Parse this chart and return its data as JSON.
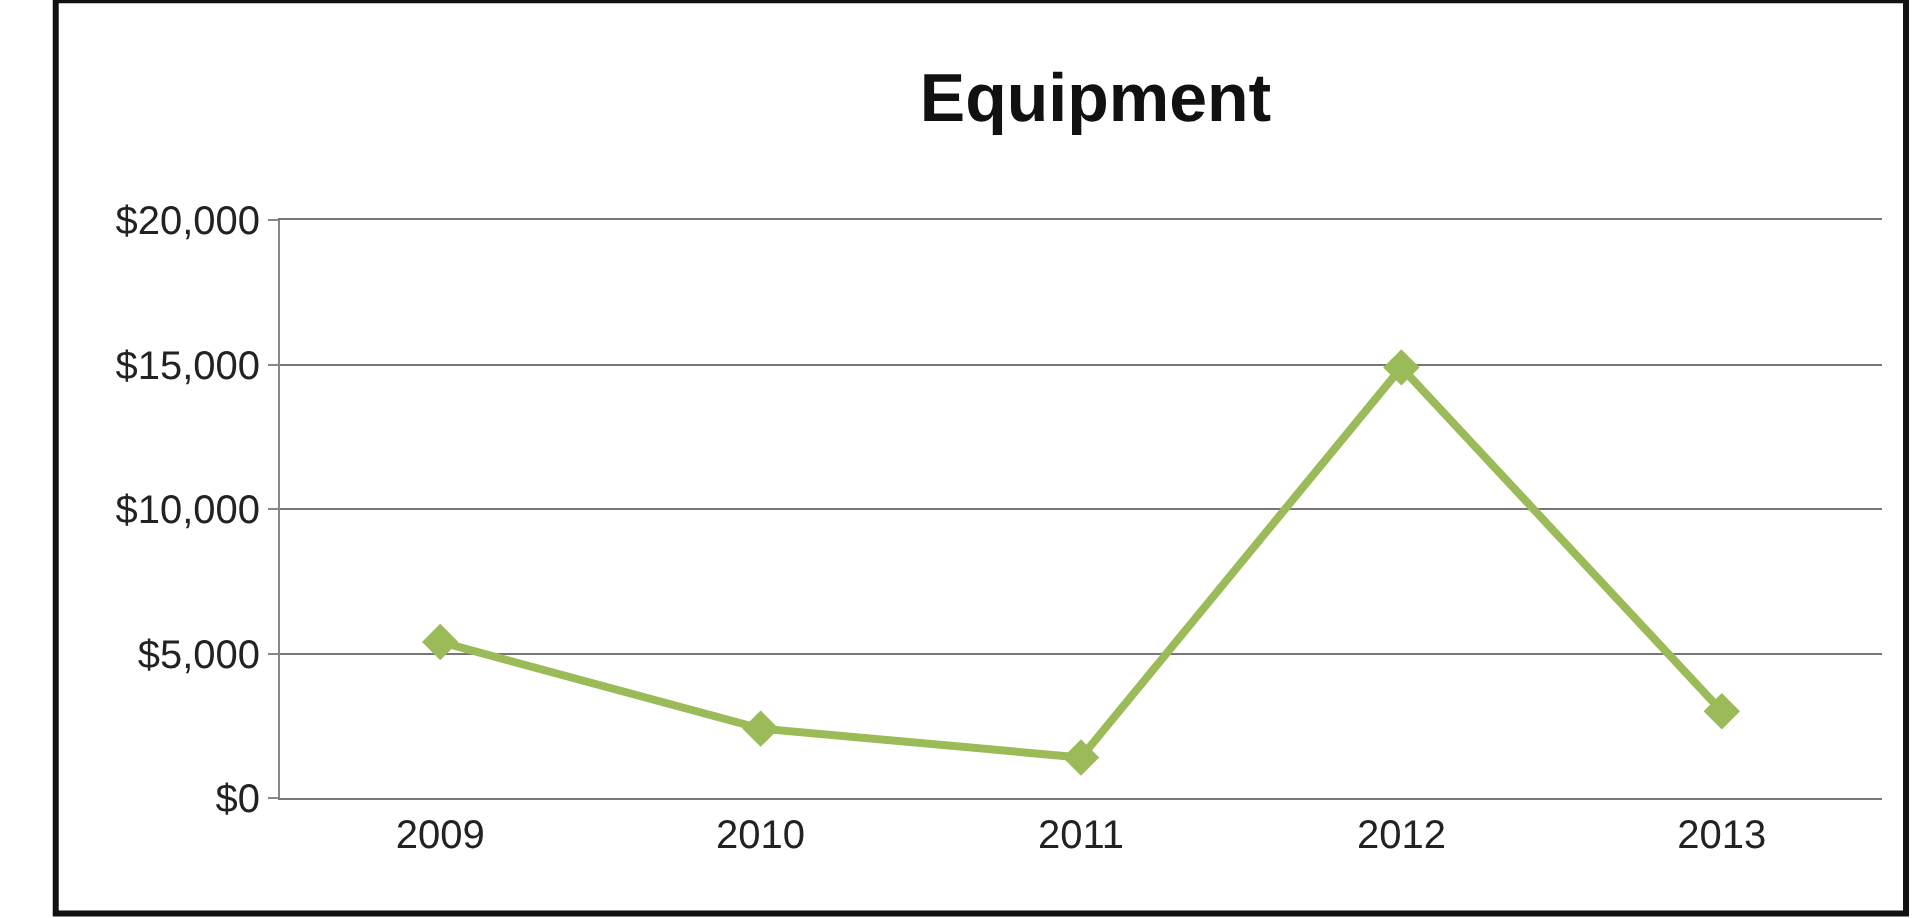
{
  "chart_data": {
    "type": "line",
    "title": "Equipment",
    "categories": [
      "2009",
      "2010",
      "2011",
      "2012",
      "2013"
    ],
    "series": [
      {
        "color": "#9bbb59",
        "values": [
          5400,
          2400,
          1400,
          14900,
          3000
        ]
      }
    ],
    "ylim": [
      0,
      20000
    ],
    "yticks": [
      {
        "value": 0,
        "label": "$0"
      },
      {
        "value": 5000,
        "label": "$5,000"
      },
      {
        "value": 10000,
        "label": "$10,000"
      },
      {
        "value": 15000,
        "label": "$15,000"
      },
      {
        "value": 20000,
        "label": "$20,000"
      }
    ],
    "grid": "y",
    "marker": "diamond",
    "line_style": "solid"
  }
}
